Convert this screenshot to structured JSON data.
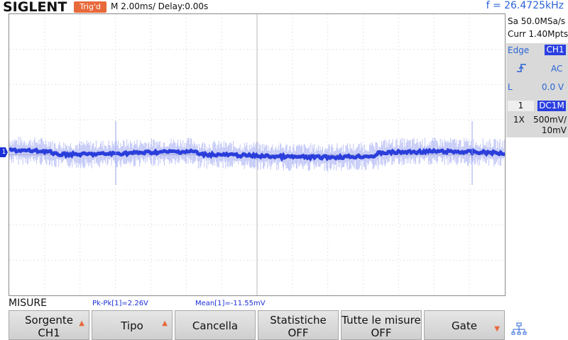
{
  "header": {
    "brand": "SIGLENT",
    "trigger_status": "Trig'd",
    "timebase": "M 2.00ms/ Delay:0.00s",
    "frequency": "f = 26.4725kHz"
  },
  "acquisition": {
    "sample_rate": "Sa 50.0MSa/s",
    "memory_depth": "Curr 1.40Mpts"
  },
  "trigger": {
    "type_label": "Edge",
    "source": "CH1",
    "slope_icon": "rising-edge-icon",
    "coupling": "AC",
    "level_label": "L",
    "level_value": "0.0 V"
  },
  "channel": {
    "number": "1",
    "coupling": "DC1M",
    "probe": "1X",
    "volts_per_div": "500mV/",
    "offset": "10mV",
    "marker_label": "1",
    "color": "#1a2fd8"
  },
  "measure": {
    "menu_title": "MISURE",
    "pkpk": "Pk-Pk[1]=2.26V",
    "mean": "Mean[1]=-11.55mV"
  },
  "softkeys": [
    {
      "line1": "Sorgente",
      "line2": "CH1",
      "arrow": "up"
    },
    {
      "line1": "Tipo",
      "line2": "",
      "arrow": "up"
    },
    {
      "line1": "Cancella",
      "line2": "",
      "arrow": ""
    },
    {
      "line1": "Statistiche",
      "line2": "OFF",
      "arrow": ""
    },
    {
      "line1": "Tutte le misure",
      "line2": "OFF",
      "arrow": ""
    },
    {
      "line1": "Gate",
      "line2": "",
      "arrow": "down"
    }
  ],
  "icons": {
    "network": "network-icon",
    "trigger_position": "trigger-position-icon"
  },
  "colors": {
    "accent_orange": "#e8693a",
    "trace_blue": "#1a2fd8",
    "text_blue": "#2a63d6"
  }
}
